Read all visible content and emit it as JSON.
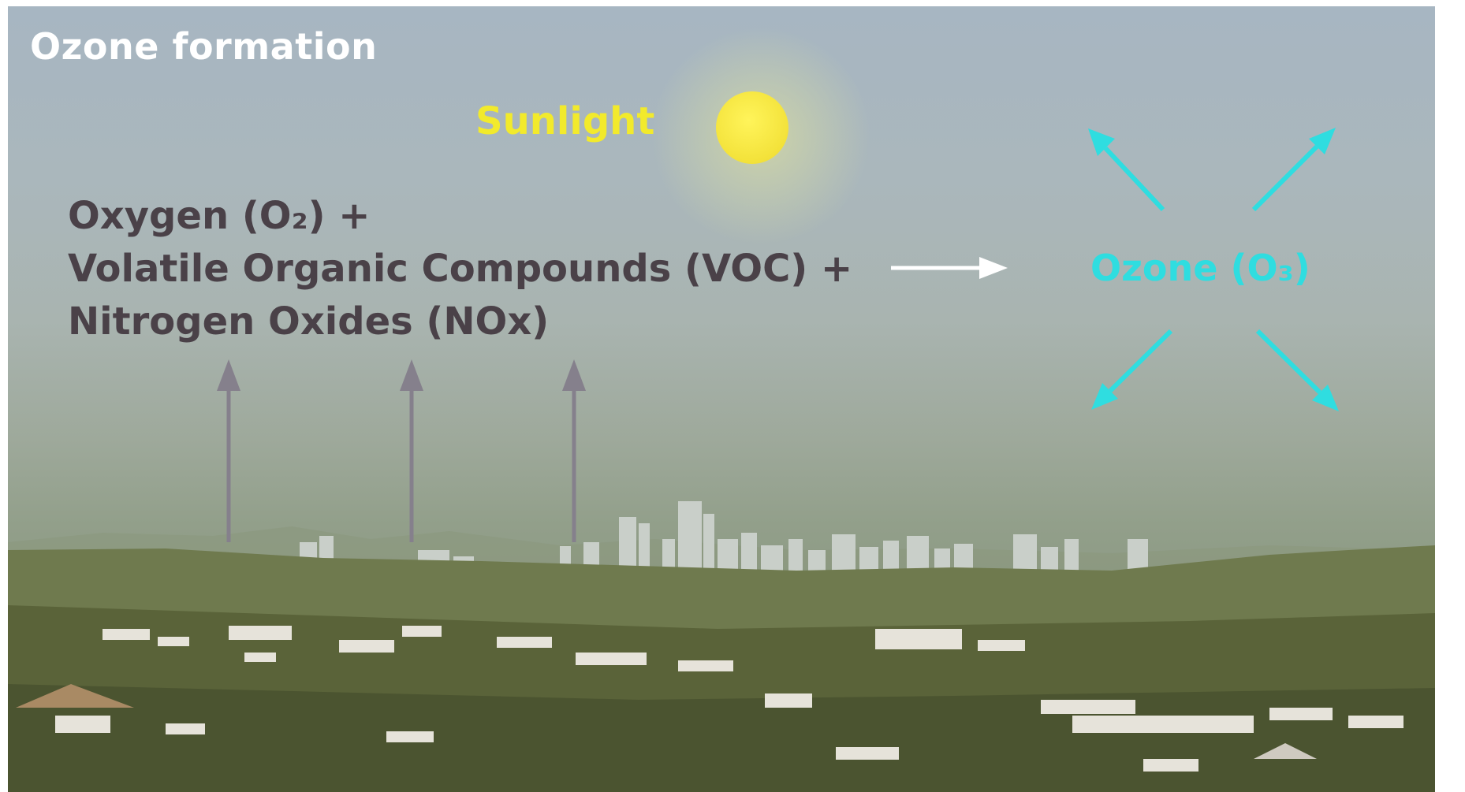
{
  "title": "Ozone formation",
  "sun": {
    "label": "Sunlight",
    "color": "#f3e23a"
  },
  "reactants": [
    "Oxygen (O₂) +",
    "Volatile Organic Compounds (VOC) +",
    "Nitrogen Oxides (NOx)"
  ],
  "product": "Ozone (O₃)",
  "colors": {
    "reactant_text": "#4a4148",
    "product": "#2fdde0",
    "title": "#ffffff",
    "reaction_arrow": "#ffffff",
    "emission_arrows": "#85808c"
  }
}
